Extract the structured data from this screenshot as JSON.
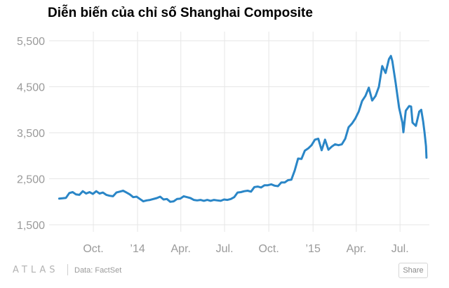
{
  "chart_data": {
    "type": "line",
    "title": "Diễn biến của chỉ số Shanghai Composite",
    "xlabel": "",
    "ylabel": "",
    "x_range": [
      "2013-07-01",
      "2015-08-31"
    ],
    "ylim": [
      1300,
      5500
    ],
    "y_ticks": [
      {
        "value": 5500,
        "label": "5,500"
      },
      {
        "value": 4500,
        "label": "4,500"
      },
      {
        "value": 3500,
        "label": "3,500"
      },
      {
        "value": 2500,
        "label": "2,500"
      },
      {
        "value": 1500,
        "label": "1,500"
      }
    ],
    "x_ticks": [
      {
        "date": "2013-10-01",
        "label": "Oct."
      },
      {
        "date": "2014-01-01",
        "label": "’14"
      },
      {
        "date": "2014-04-01",
        "label": "Apr."
      },
      {
        "date": "2014-07-01",
        "label": "Jul."
      },
      {
        "date": "2014-10-01",
        "label": "Oct."
      },
      {
        "date": "2015-01-01",
        "label": "’15"
      },
      {
        "date": "2015-04-01",
        "label": "Apr."
      },
      {
        "date": "2015-07-01",
        "label": "Jul."
      }
    ],
    "grid": true,
    "line_color": "#2a86c7",
    "grid_color": "#e6e6e6",
    "series": [
      {
        "points": [
          [
            "2013-07-22",
            2070
          ],
          [
            "2013-07-29",
            2075
          ],
          [
            "2013-08-05",
            2085
          ],
          [
            "2013-08-12",
            2190
          ],
          [
            "2013-08-19",
            2210
          ],
          [
            "2013-08-26",
            2160
          ],
          [
            "2013-09-02",
            2150
          ],
          [
            "2013-09-09",
            2230
          ],
          [
            "2013-09-16",
            2180
          ],
          [
            "2013-09-23",
            2210
          ],
          [
            "2013-09-30",
            2170
          ],
          [
            "2013-10-07",
            2230
          ],
          [
            "2013-10-14",
            2180
          ],
          [
            "2013-10-21",
            2200
          ],
          [
            "2013-10-28",
            2150
          ],
          [
            "2013-11-04",
            2130
          ],
          [
            "2013-11-11",
            2120
          ],
          [
            "2013-11-18",
            2200
          ],
          [
            "2013-11-25",
            2220
          ],
          [
            "2013-12-02",
            2240
          ],
          [
            "2013-12-09",
            2200
          ],
          [
            "2013-12-16",
            2160
          ],
          [
            "2013-12-23",
            2100
          ],
          [
            "2013-12-30",
            2110
          ],
          [
            "2014-01-06",
            2060
          ],
          [
            "2014-01-13",
            2010
          ],
          [
            "2014-01-20",
            2030
          ],
          [
            "2014-01-27",
            2040
          ],
          [
            "2014-02-10",
            2080
          ],
          [
            "2014-02-17",
            2110
          ],
          [
            "2014-02-24",
            2050
          ],
          [
            "2014-03-03",
            2060
          ],
          [
            "2014-03-10",
            2000
          ],
          [
            "2014-03-17",
            2010
          ],
          [
            "2014-03-24",
            2060
          ],
          [
            "2014-03-31",
            2070
          ],
          [
            "2014-04-07",
            2120
          ],
          [
            "2014-04-14",
            2100
          ],
          [
            "2014-04-21",
            2080
          ],
          [
            "2014-04-28",
            2040
          ],
          [
            "2014-05-05",
            2030
          ],
          [
            "2014-05-12",
            2040
          ],
          [
            "2014-05-19",
            2020
          ],
          [
            "2014-05-26",
            2040
          ],
          [
            "2014-06-02",
            2020
          ],
          [
            "2014-06-09",
            2040
          ],
          [
            "2014-06-16",
            2030
          ],
          [
            "2014-06-23",
            2020
          ],
          [
            "2014-06-30",
            2050
          ],
          [
            "2014-07-07",
            2040
          ],
          [
            "2014-07-14",
            2060
          ],
          [
            "2014-07-21",
            2100
          ],
          [
            "2014-07-28",
            2200
          ],
          [
            "2014-08-04",
            2210
          ],
          [
            "2014-08-11",
            2230
          ],
          [
            "2014-08-18",
            2240
          ],
          [
            "2014-08-25",
            2220
          ],
          [
            "2014-09-01",
            2320
          ],
          [
            "2014-09-08",
            2330
          ],
          [
            "2014-09-15",
            2310
          ],
          [
            "2014-09-22",
            2360
          ],
          [
            "2014-09-29",
            2360
          ],
          [
            "2014-10-06",
            2380
          ],
          [
            "2014-10-13",
            2350
          ],
          [
            "2014-10-20",
            2340
          ],
          [
            "2014-10-27",
            2420
          ],
          [
            "2014-11-03",
            2420
          ],
          [
            "2014-11-10",
            2470
          ],
          [
            "2014-11-17",
            2480
          ],
          [
            "2014-11-24",
            2680
          ],
          [
            "2014-12-01",
            2940
          ],
          [
            "2014-12-08",
            2930
          ],
          [
            "2014-12-15",
            3110
          ],
          [
            "2014-12-22",
            3160
          ],
          [
            "2014-12-29",
            3230
          ],
          [
            "2015-01-05",
            3350
          ],
          [
            "2015-01-12",
            3370
          ],
          [
            "2015-01-19",
            3120
          ],
          [
            "2015-01-26",
            3350
          ],
          [
            "2015-02-02",
            3130
          ],
          [
            "2015-02-09",
            3200
          ],
          [
            "2015-02-16",
            3250
          ],
          [
            "2015-02-23",
            3230
          ],
          [
            "2015-03-02",
            3250
          ],
          [
            "2015-03-09",
            3370
          ],
          [
            "2015-03-16",
            3620
          ],
          [
            "2015-03-23",
            3700
          ],
          [
            "2015-03-30",
            3810
          ],
          [
            "2015-04-06",
            3960
          ],
          [
            "2015-04-13",
            4190
          ],
          [
            "2015-04-20",
            4300
          ],
          [
            "2015-04-27",
            4480
          ],
          [
            "2015-05-04",
            4200
          ],
          [
            "2015-05-11",
            4300
          ],
          [
            "2015-05-18",
            4500
          ],
          [
            "2015-05-25",
            4950
          ],
          [
            "2015-06-01",
            4800
          ],
          [
            "2015-06-08",
            5100
          ],
          [
            "2015-06-12",
            5170
          ],
          [
            "2015-06-15",
            5060
          ],
          [
            "2015-06-22",
            4580
          ],
          [
            "2015-06-29",
            4050
          ],
          [
            "2015-07-06",
            3720
          ],
          [
            "2015-07-08",
            3510
          ],
          [
            "2015-07-13",
            3980
          ],
          [
            "2015-07-20",
            4080
          ],
          [
            "2015-07-24",
            4070
          ],
          [
            "2015-07-27",
            3720
          ],
          [
            "2015-08-03",
            3650
          ],
          [
            "2015-08-10",
            3960
          ],
          [
            "2015-08-14",
            4000
          ],
          [
            "2015-08-18",
            3750
          ],
          [
            "2015-08-21",
            3510
          ],
          [
            "2015-08-24",
            3210
          ],
          [
            "2015-08-25",
            2960
          ]
        ]
      }
    ]
  },
  "footer": {
    "logo": "ATLAS",
    "source": "Data: FactSet",
    "share_label": "Share"
  }
}
